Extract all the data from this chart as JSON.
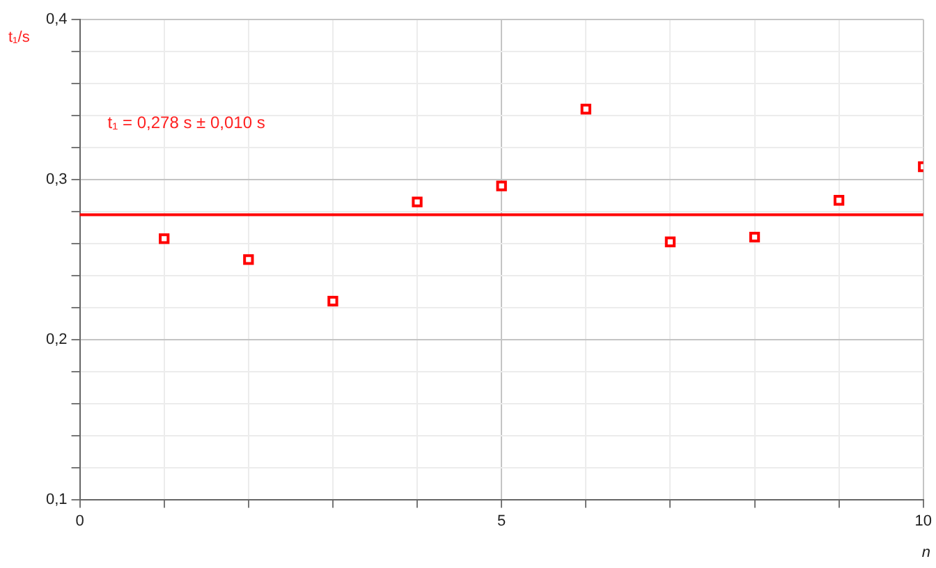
{
  "chart_data": {
    "type": "scatter",
    "xlabel": "n",
    "ylabel": "t₁/s",
    "annotations": [
      "t₁ = 0,278 s ± 0,010 s"
    ],
    "x": [
      1,
      2,
      3,
      4,
      5,
      6,
      7,
      8,
      9,
      10
    ],
    "series": [
      {
        "color": "#ff0000",
        "values": [
          0.263,
          0.25,
          0.224,
          0.286,
          0.296,
          0.344,
          0.261,
          0.264,
          0.287,
          0.308
        ]
      }
    ],
    "ref_lines": [
      {
        "axis": "y",
        "value": 0.278,
        "color": "#ff0000",
        "line_style": "solid"
      }
    ],
    "xlim": [
      0,
      10
    ],
    "ylim": [
      0.1,
      0.4
    ],
    "xticks": [
      0,
      {
        "value": 1,
        "label": null
      },
      {
        "value": 2,
        "label": null
      },
      {
        "value": 3,
        "label": null
      },
      {
        "value": 4,
        "label": null
      },
      5,
      {
        "value": 6,
        "label": null
      },
      {
        "value": 7,
        "label": null
      },
      {
        "value": 8,
        "label": null
      },
      {
        "value": 9,
        "label": null
      },
      10
    ],
    "yticks": [
      {
        "value": 0.1,
        "label": "0,1"
      },
      {
        "value": 0.12,
        "label": null
      },
      {
        "value": 0.14,
        "label": null
      },
      {
        "value": 0.16,
        "label": null
      },
      {
        "value": 0.18,
        "label": null
      },
      {
        "value": 0.2,
        "label": "0,2"
      },
      {
        "value": 0.22,
        "label": null
      },
      {
        "value": 0.24,
        "label": null
      },
      {
        "value": 0.26,
        "label": null
      },
      {
        "value": 0.28,
        "label": null
      },
      {
        "value": 0.3,
        "label": "0,3"
      },
      {
        "value": 0.32,
        "label": null
      },
      {
        "value": 0.34,
        "label": null
      },
      {
        "value": 0.36,
        "label": null
      },
      {
        "value": 0.38,
        "label": null
      },
      {
        "value": 0.4,
        "label": "0,4"
      }
    ],
    "grid": true,
    "legend": false,
    "marker": "square"
  }
}
